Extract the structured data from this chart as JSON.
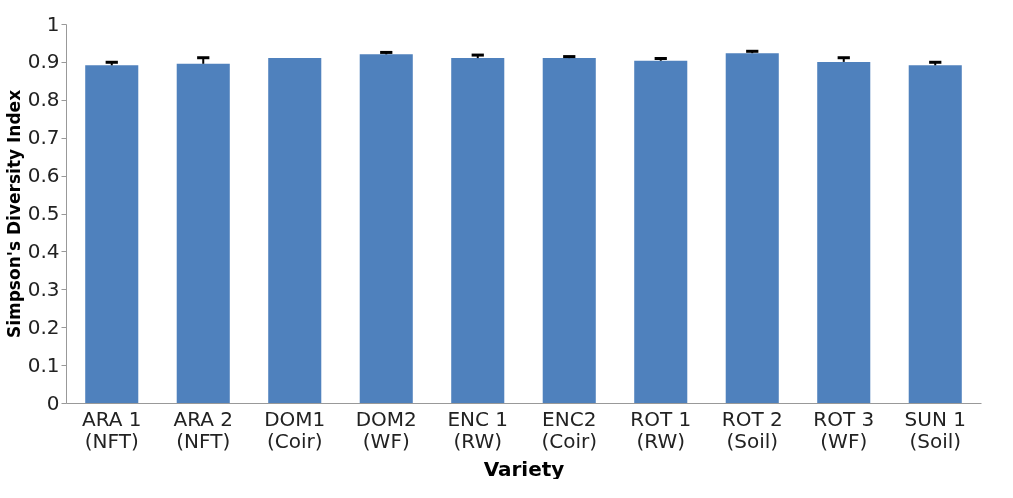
{
  "chart_data": {
    "type": "bar",
    "xlabel": "Variety",
    "ylabel": "Simpson's Diversity Index",
    "categories": [
      "ARA 1\n(NFT)",
      "ARA 2\n(NFT)",
      "DOM1\n(Coir)",
      "DOM2\n(WF)",
      "ENC 1\n(RW)",
      "ENC2\n(Coir)",
      "ROT 1\n(RW)",
      "ROT 2\n(Soil)",
      "ROT 3\n(WF)",
      "SUN 1\n(Soil)"
    ],
    "values": [
      0.891,
      0.895,
      0.91,
      0.92,
      0.91,
      0.91,
      0.903,
      0.923,
      0.9,
      0.891
    ],
    "errors": [
      [
        0.891,
        0.899
      ],
      [
        0.895,
        0.911
      ],
      null,
      [
        0.92,
        0.925
      ],
      [
        0.91,
        0.918
      ],
      [
        0.91,
        0.914
      ],
      [
        0.903,
        0.909
      ],
      [
        0.923,
        0.928
      ],
      [
        0.9,
        0.911
      ],
      [
        0.891,
        0.899
      ]
    ],
    "color": "#4f81bd",
    "ylim": [
      0,
      1
    ],
    "yticks": [
      0,
      0.1,
      0.2,
      0.3,
      0.4,
      0.5,
      0.6,
      0.7,
      0.8,
      0.9,
      1
    ],
    "grid": false
  }
}
